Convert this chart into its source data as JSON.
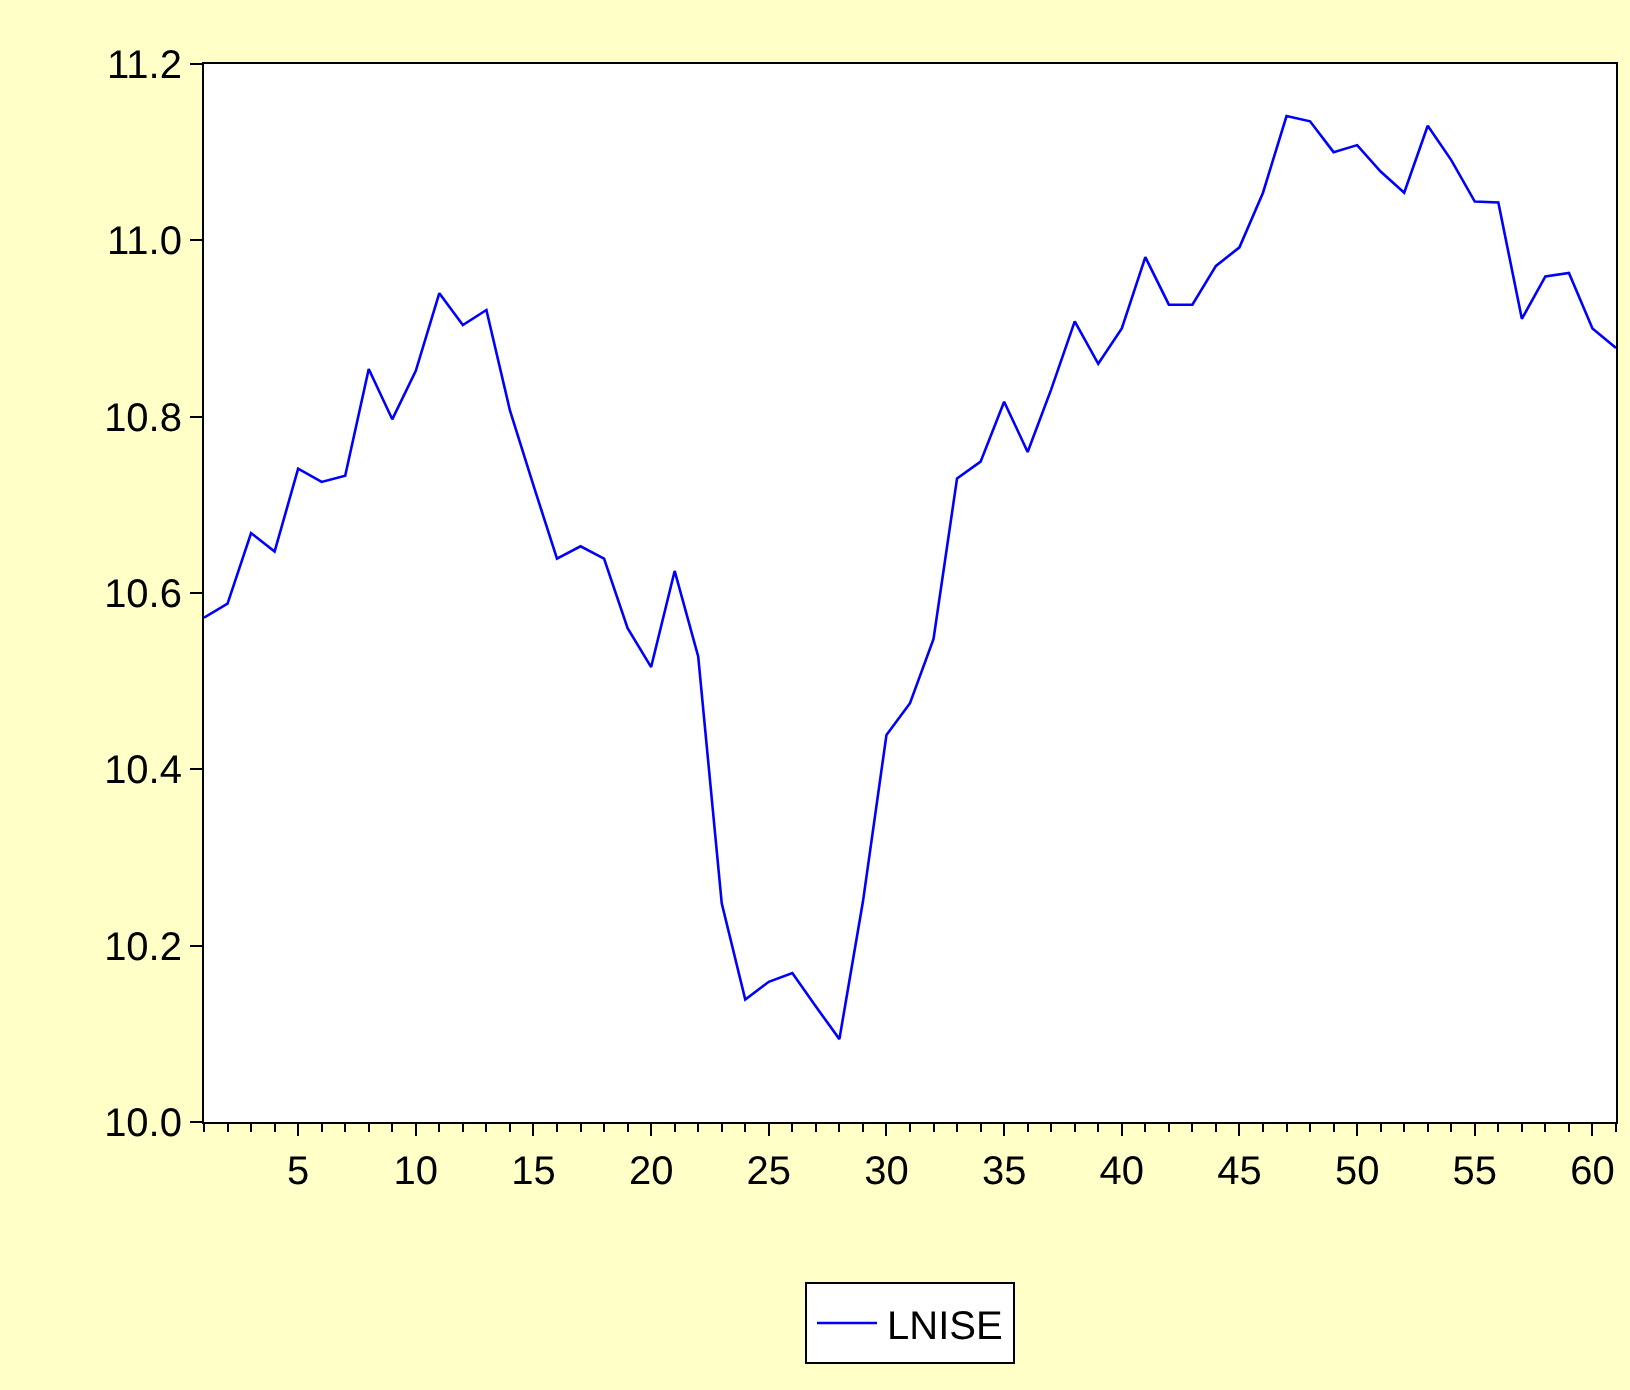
{
  "chart_data": {
    "type": "line",
    "x": [
      1,
      2,
      3,
      4,
      5,
      6,
      7,
      8,
      9,
      10,
      11,
      12,
      13,
      14,
      15,
      16,
      17,
      18,
      19,
      20,
      21,
      22,
      23,
      24,
      25,
      26,
      27,
      28,
      29,
      30,
      31,
      32,
      33,
      34,
      35,
      36,
      37,
      38,
      39,
      40,
      41,
      42,
      43,
      44,
      45,
      46,
      47,
      48,
      49,
      50,
      51,
      52,
      53,
      54,
      55,
      56,
      57,
      58,
      59,
      60,
      61
    ],
    "series": [
      {
        "name": "LNISE",
        "color": "#0000ff",
        "values": [
          10.572,
          10.588,
          10.668,
          10.647,
          10.741,
          10.726,
          10.733,
          10.854,
          10.797,
          10.852,
          10.94,
          10.904,
          10.921,
          10.807,
          10.722,
          10.639,
          10.653,
          10.639,
          10.56,
          10.516,
          10.625,
          10.528,
          10.248,
          10.139,
          10.159,
          10.169,
          10.131,
          10.094,
          10.25,
          10.439,
          10.475,
          10.548,
          10.73,
          10.749,
          10.817,
          10.76,
          10.831,
          10.908,
          10.86,
          10.9,
          10.981,
          10.927,
          10.927,
          10.971,
          10.992,
          11.054,
          11.141,
          11.135,
          11.1,
          11.108,
          11.078,
          11.054,
          11.13,
          11.091,
          11.044,
          11.043,
          10.911,
          10.959,
          10.963,
          10.9,
          10.878
        ]
      }
    ],
    "xlim": [
      1,
      61
    ],
    "xticks": [
      5,
      10,
      15,
      20,
      25,
      30,
      35,
      40,
      45,
      50,
      55,
      60
    ],
    "ylim": [
      10.0,
      11.2
    ],
    "yticks": [
      {
        "value": 10.0,
        "label": "10.0"
      },
      {
        "value": 10.2,
        "label": "10.2"
      },
      {
        "value": 10.4,
        "label": "10.4"
      },
      {
        "value": 10.6,
        "label": "10.6"
      },
      {
        "value": 10.8,
        "label": "10.8"
      },
      {
        "value": 11.0,
        "label": "11.0"
      },
      {
        "value": 11.2,
        "label": "11.2"
      }
    ],
    "grid": false,
    "legend": "bottom",
    "marker": "none",
    "line_style": "solid"
  }
}
